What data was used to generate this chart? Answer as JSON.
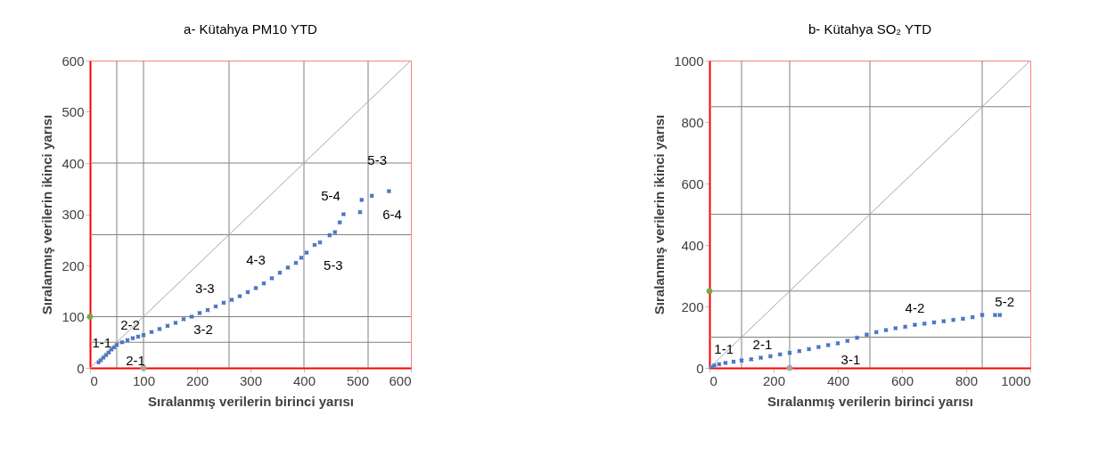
{
  "chart_data": [
    {
      "type": "scatter",
      "title": "a- Kütahya PM10 YTD",
      "xlabel": "Sıralanmış verilerin birinci yarısı",
      "ylabel": "Sıralanmış verilerin ikinci yarısı",
      "xlim": [
        0,
        600
      ],
      "ylim": [
        0,
        600
      ],
      "xticks": [
        0,
        100,
        200,
        300,
        400,
        500,
        600
      ],
      "yticks": [
        0,
        100,
        200,
        300,
        400,
        500,
        600
      ],
      "grid": false,
      "marker": "cross",
      "series": [
        {
          "type": "scatter",
          "color": "#4472c4",
          "x": [
            16,
            20,
            25,
            30,
            35,
            40,
            45,
            50,
            60,
            70,
            80,
            90,
            100,
            115,
            130,
            145,
            160,
            175,
            190,
            205,
            220,
            235,
            250,
            265,
            280,
            295,
            310,
            325,
            340,
            355,
            370,
            385,
            395,
            405,
            420,
            430,
            448,
            458,
            467,
            474,
            505,
            508,
            527,
            559
          ],
          "values": [
            11,
            15,
            20,
            25,
            30,
            36,
            40,
            45,
            50,
            54,
            58,
            61,
            64,
            70,
            76,
            82,
            88,
            95,
            100,
            107,
            113,
            120,
            127,
            133,
            140,
            148,
            156,
            165,
            175,
            186,
            196,
            205,
            215,
            225,
            240,
            245,
            259,
            265,
            284,
            300,
            304,
            328,
            336,
            345
          ]
        },
        {
          "type": "line",
          "marker": "none",
          "color": "#a6a6a6",
          "x": [
            0,
            600
          ],
          "values": [
            0,
            600
          ]
        },
        {
          "type": "scatter",
          "marker": "circle",
          "color": "#70ad47",
          "x": [
            0
          ],
          "values": [
            100
          ]
        },
        {
          "type": "scatter",
          "marker": "circle",
          "color": "#a5a5a5",
          "x": [
            100
          ],
          "values": [
            0
          ]
        }
      ],
      "ref_lines": [
        {
          "axis": "x",
          "value": 50,
          "color": "#808080"
        },
        {
          "axis": "x",
          "value": 100,
          "color": "#808080"
        },
        {
          "axis": "x",
          "value": 260,
          "color": "#808080"
        },
        {
          "axis": "x",
          "value": 400,
          "color": "#808080"
        },
        {
          "axis": "x",
          "value": 520,
          "color": "#808080"
        },
        {
          "axis": "y",
          "value": 50,
          "color": "#808080"
        },
        {
          "axis": "y",
          "value": 100,
          "color": "#808080"
        },
        {
          "axis": "y",
          "value": 260,
          "color": "#808080"
        },
        {
          "axis": "y",
          "value": 400,
          "color": "#808080"
        }
      ],
      "annotations": [
        "5-3",
        "5-4",
        "6-4",
        "4-3",
        "5-3",
        "3-3",
        "3-2",
        "2-2",
        "1-1",
        "2-1"
      ]
    },
    {
      "type": "scatter",
      "title": "b- Kütahya SO₂ YTD",
      "xlabel": "Sıralanmış verilerin birinci yarısı",
      "ylabel": "Sıralanmış verilerin ikinci yarısı",
      "xlim": [
        0,
        1000
      ],
      "ylim": [
        0,
        1000
      ],
      "xticks": [
        0,
        200,
        400,
        600,
        800,
        1000
      ],
      "yticks": [
        0,
        200,
        400,
        600,
        800,
        1000
      ],
      "grid": false,
      "marker": "cross",
      "series": [
        {
          "type": "scatter",
          "color": "#4472c4",
          "x": [
            5,
            15,
            30,
            50,
            75,
            100,
            130,
            160,
            190,
            220,
            250,
            280,
            310,
            340,
            370,
            400,
            430,
            460,
            490,
            520,
            550,
            580,
            610,
            640,
            670,
            700,
            730,
            760,
            790,
            820,
            850,
            890,
            905
          ],
          "values": [
            3,
            8,
            12,
            16,
            20,
            24,
            28,
            33,
            38,
            44,
            49,
            55,
            61,
            68,
            74,
            80,
            88,
            98,
            108,
            116,
            123,
            129,
            134,
            140,
            144,
            148,
            152,
            156,
            160,
            165,
            172,
            172,
            172
          ]
        },
        {
          "type": "line",
          "marker": "none",
          "color": "#a6a6a6",
          "x": [
            0,
            1000
          ],
          "values": [
            0,
            1000
          ]
        },
        {
          "type": "scatter",
          "marker": "circle",
          "color": "#70ad47",
          "x": [
            0
          ],
          "values": [
            250
          ]
        },
        {
          "type": "scatter",
          "marker": "circle",
          "color": "#a5a5a5",
          "x": [
            250
          ],
          "values": [
            0
          ]
        }
      ],
      "ref_lines": [
        {
          "axis": "x",
          "value": 100,
          "color": "#808080"
        },
        {
          "axis": "x",
          "value": 250,
          "color": "#808080"
        },
        {
          "axis": "x",
          "value": 500,
          "color": "#808080"
        },
        {
          "axis": "x",
          "value": 850,
          "color": "#808080"
        },
        {
          "axis": "y",
          "value": 100,
          "color": "#808080"
        },
        {
          "axis": "y",
          "value": 250,
          "color": "#808080"
        },
        {
          "axis": "y",
          "value": 500,
          "color": "#808080"
        },
        {
          "axis": "y",
          "value": 850,
          "color": "#808080"
        }
      ],
      "annotations": [
        "1-1",
        "2-1",
        "3-1",
        "4-2",
        "5-2"
      ]
    }
  ]
}
